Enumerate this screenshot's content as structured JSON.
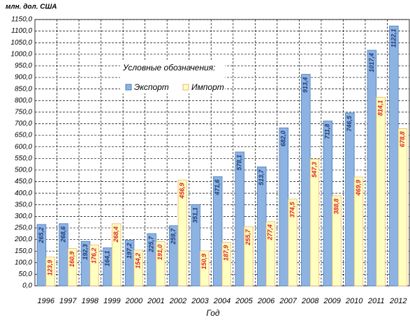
{
  "chart_data": {
    "type": "bar",
    "title": "млн. дол. США",
    "x_label": "Год",
    "legend_title": "Условные обозначения:",
    "categories": [
      "1996",
      "1997",
      "1998",
      "1999",
      "2000",
      "2001",
      "2002",
      "2003",
      "2004",
      "2005",
      "2006",
      "2007",
      "2008",
      "2009",
      "2010",
      "2011",
      "2012"
    ],
    "series": [
      {
        "name": "Экспорт",
        "color": "#8db3e2",
        "border": "#4a7ebb",
        "label_color": "#1f3a7a",
        "values": [
          265.2,
          268.6,
          192.3,
          164.1,
          197.2,
          225.7,
          259.7,
          351.1,
          471.6,
          578.1,
          513.7,
          682.0,
          913.4,
          711.8,
          746.5,
          1017.4,
          1122.1
        ],
        "value_labels": [
          "265,2",
          "268,6",
          "192,3",
          "164,1",
          "197,2",
          "225,7",
          "259,7",
          "351,1",
          "471,6",
          "578,1",
          "513,7",
          "682,0",
          "913,4",
          "711,8",
          "746,5",
          "1017,4",
          "1122,1"
        ]
      },
      {
        "name": "Импорт",
        "color": "#ffffc0",
        "border": "#e6b870",
        "label_color": "#e02020",
        "values": [
          123.9,
          160.9,
          176.2,
          268.4,
          154.2,
          191.0,
          456.9,
          150.9,
          187.9,
          255.7,
          277.4,
          374.5,
          547.3,
          388.8,
          469.9,
          814.1,
          678.8
        ],
        "value_labels": [
          "123,9",
          "160,9",
          "176,2",
          "268,4",
          "154,2",
          "191,0",
          "456,9",
          "150,9",
          "187,9",
          "255,7",
          "277,4",
          "374,5",
          "547,3",
          "388,8",
          "469,9",
          "814,1",
          "678,8"
        ]
      }
    ],
    "ylim": [
      0,
      1150
    ],
    "yticks": [
      {
        "value": 0,
        "label": "0,0"
      },
      {
        "value": 50,
        "label": "50,0"
      },
      {
        "value": 100,
        "label": "100,0"
      },
      {
        "value": 150,
        "label": "150,0"
      },
      {
        "value": 200,
        "label": "200,0"
      },
      {
        "value": 250,
        "label": "250,0"
      },
      {
        "value": 300,
        "label": "300,0"
      },
      {
        "value": 350,
        "label": "350,0"
      },
      {
        "value": 400,
        "label": "400,0"
      },
      {
        "value": 450,
        "label": "450,0"
      },
      {
        "value": 500,
        "label": "500,0"
      },
      {
        "value": 550,
        "label": "550,0"
      },
      {
        "value": 600,
        "label": "600,0"
      },
      {
        "value": 650,
        "label": "650,0"
      },
      {
        "value": 700,
        "label": "700,0"
      },
      {
        "value": 750,
        "label": "750,0"
      },
      {
        "value": 800,
        "label": "800,0"
      },
      {
        "value": 850,
        "label": "850,0"
      },
      {
        "value": 900,
        "label": "900,0"
      },
      {
        "value": 950,
        "label": "950,0"
      },
      {
        "value": 1000,
        "label": "1000,0"
      },
      {
        "value": 1050,
        "label": "1050,0"
      },
      {
        "value": 1100,
        "label": "1100,0"
      },
      {
        "value": 1150,
        "label": "1150,0"
      }
    ],
    "grid": true
  }
}
